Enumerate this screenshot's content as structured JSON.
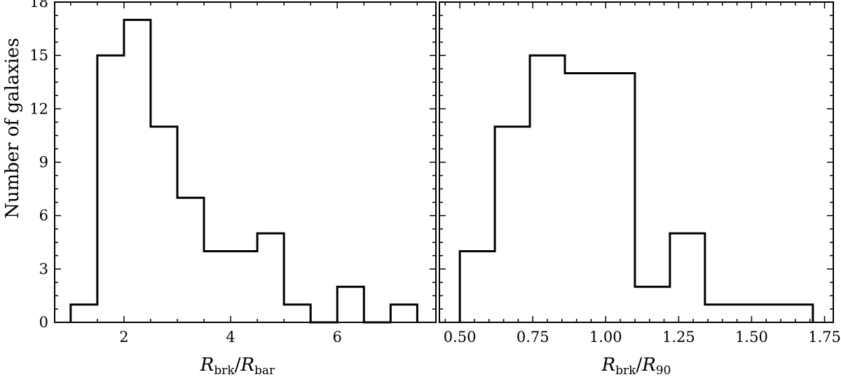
{
  "chart_data": [
    {
      "type": "histogram",
      "xlabel": {
        "main": "R",
        "sub1": "brk",
        "slash": "/",
        "main2": "R",
        "sub2": "bar"
      },
      "ylabel": "Number of galaxies",
      "xlim": [
        0.7,
        7.85
      ],
      "ylim": [
        0,
        18
      ],
      "xticks": [
        2,
        4,
        6
      ],
      "xtick_labels": [
        "2",
        "4",
        "6"
      ],
      "yticks": [
        0,
        3,
        6,
        9,
        12,
        15,
        18
      ],
      "ytick_labels": [
        "0",
        "3",
        "6",
        "9",
        "12",
        "15",
        "18"
      ],
      "bin_edges": [
        1.0,
        1.5,
        2.0,
        2.5,
        3.0,
        3.5,
        4.0,
        4.5,
        5.0,
        5.5,
        6.0,
        6.5,
        7.0,
        7.5
      ],
      "counts": [
        1,
        15,
        17,
        11,
        7,
        4,
        4,
        5,
        1,
        0,
        2,
        0,
        1
      ],
      "style": "step",
      "grid": false
    },
    {
      "type": "histogram",
      "xlabel": {
        "main": "R",
        "sub1": "brk",
        "slash": "/",
        "main2": "R",
        "sub2": "90"
      },
      "ylabel": "",
      "xlim": [
        0.43,
        1.78
      ],
      "ylim": [
        0,
        18
      ],
      "xticks": [
        0.5,
        0.75,
        1.0,
        1.25,
        1.5,
        1.75
      ],
      "xtick_labels": [
        "0.50",
        "0.75",
        "1.00",
        "1.25",
        "1.50",
        "1.75"
      ],
      "yticks": [
        0,
        3,
        6,
        9,
        12,
        15,
        18
      ],
      "ytick_labels": [],
      "bin_edges": [
        0.5,
        0.62,
        0.74,
        0.86,
        0.98,
        1.1,
        1.22,
        1.34,
        1.46,
        1.58,
        1.71
      ],
      "counts": [
        4,
        11,
        15,
        14,
        14,
        2,
        5,
        1,
        1,
        1
      ],
      "style": "step",
      "grid": false
    }
  ]
}
